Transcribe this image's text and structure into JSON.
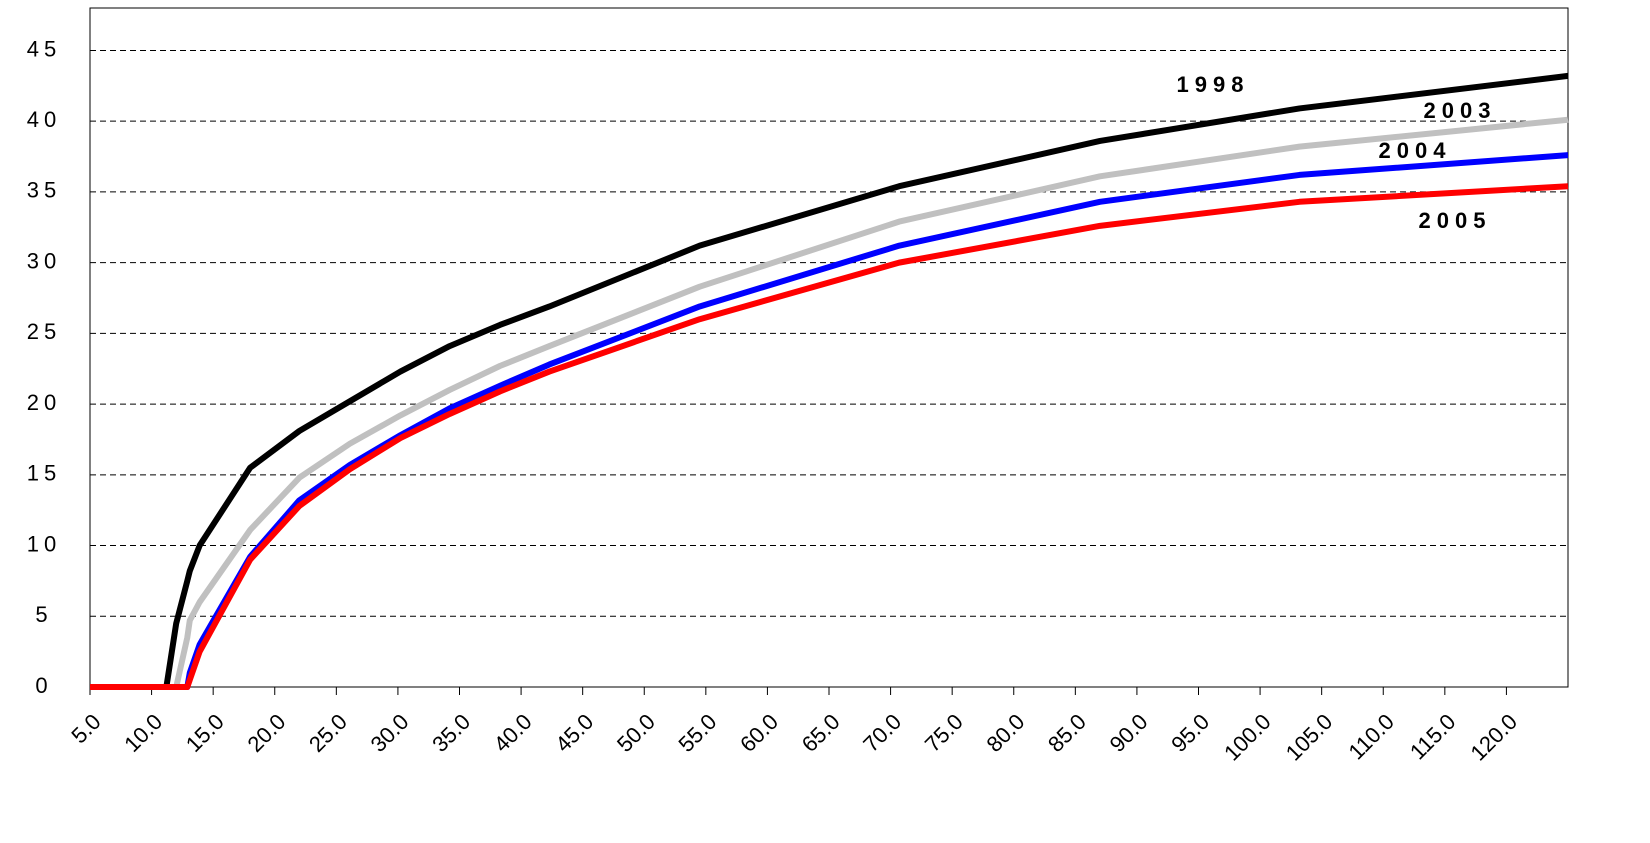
{
  "chart_data": {
    "type": "line",
    "x": [
      5,
      11.2,
      12,
      12.9,
      13.1,
      13.9,
      18,
      22,
      26.1,
      30.2,
      34.2,
      38.3,
      42.3,
      54.5,
      70.7,
      87,
      103.2,
      125
    ],
    "series": [
      {
        "name": "1998",
        "color": "#000000",
        "values": [
          0,
          0,
          4.5,
          7.5,
          8.2,
          10,
          15.5,
          18.1,
          20.2,
          22.3,
          24.1,
          25.6,
          26.9,
          31.2,
          35.4,
          38.6,
          40.9,
          43.2
        ]
      },
      {
        "name": "2003",
        "color": "#c0c0c0",
        "label_color": "#808080",
        "values": [
          0,
          0,
          0,
          3.5,
          4.7,
          6,
          11.1,
          14.8,
          17.2,
          19.2,
          21,
          22.7,
          24.1,
          28.3,
          32.9,
          36.1,
          38.2,
          40.1
        ]
      },
      {
        "name": "2004",
        "color": "#0000ff",
        "values": [
          0,
          0,
          0,
          0,
          1,
          3,
          9.2,
          13.2,
          15.7,
          17.8,
          19.7,
          21.3,
          22.8,
          26.9,
          31.2,
          34.3,
          36.2,
          37.6
        ]
      },
      {
        "name": "2005",
        "color": "#ff0000",
        "values": [
          0,
          0,
          0,
          0,
          0.5,
          2.5,
          9,
          12.8,
          15.4,
          17.6,
          19.3,
          20.9,
          22.3,
          26,
          30,
          32.6,
          34.3,
          35.4
        ]
      }
    ],
    "xlim": [
      5,
      125
    ],
    "xticks": [
      {
        "value": 5,
        "label": "5.0"
      },
      {
        "value": 10,
        "label": "10.0"
      },
      {
        "value": 15,
        "label": "15.0"
      },
      {
        "value": 20,
        "label": "20.0"
      },
      {
        "value": 25,
        "label": "25.0"
      },
      {
        "value": 30,
        "label": "30.0"
      },
      {
        "value": 35,
        "label": "35.0"
      },
      {
        "value": 40,
        "label": "40.0"
      },
      {
        "value": 45,
        "label": "45.0"
      },
      {
        "value": 50,
        "label": "50.0"
      },
      {
        "value": 55,
        "label": "55.0"
      },
      {
        "value": 60,
        "label": "60.0"
      },
      {
        "value": 65,
        "label": "65.0"
      },
      {
        "value": 70,
        "label": "70.0"
      },
      {
        "value": 75,
        "label": "75.0"
      },
      {
        "value": 80,
        "label": "80.0"
      },
      {
        "value": 85,
        "label": "85.0"
      },
      {
        "value": 90,
        "label": "90.0"
      },
      {
        "value": 95,
        "label": "95.0"
      },
      {
        "value": 100,
        "label": "100.0"
      },
      {
        "value": 105,
        "label": "105.0"
      },
      {
        "value": 110,
        "label": "110.0"
      },
      {
        "value": 115,
        "label": "115.0"
      },
      {
        "value": 120,
        "label": "120.0"
      }
    ],
    "ylim": [
      0,
      48
    ],
    "yticks": [
      0,
      5,
      10,
      15,
      20,
      25,
      30,
      35,
      40,
      45
    ],
    "grid": true
  }
}
